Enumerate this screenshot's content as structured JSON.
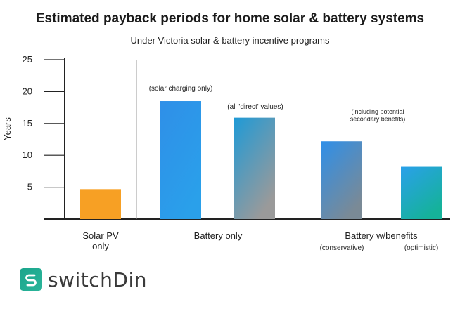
{
  "chart_data": {
    "type": "bar",
    "title": "Estimated payback periods for home solar & battery systems",
    "subtitle": "Under Victoria solar & battery incentive programs",
    "ylabel": "Years",
    "ylim": [
      0,
      25
    ],
    "yticks": [
      5,
      10,
      15,
      20,
      25
    ],
    "grid": false,
    "groups": [
      {
        "label": "Solar PV\nonly"
      },
      {
        "label": "Battery only"
      },
      {
        "label": "Battery w/benefits"
      }
    ],
    "bars": [
      {
        "group": 0,
        "value": 4.7,
        "annotation": "",
        "sublabel": "",
        "colors": [
          "#f7a024",
          "#f7a024"
        ]
      },
      {
        "group": 1,
        "value": 18.5,
        "annotation": "(solar charging only)",
        "sublabel": "",
        "colors": [
          "#2f8fe8",
          "#2aa0ea"
        ]
      },
      {
        "group": 1,
        "value": 15.9,
        "annotation": "(all 'direct' values)",
        "sublabel": "",
        "colors": [
          "#1f9ad6",
          "#9a9a9a"
        ]
      },
      {
        "group": 2,
        "value": 12.2,
        "annotation": "(including potential\nsecondary benefits)",
        "sublabel": "(conservative)",
        "colors": [
          "#2f8fe8",
          "#7a8a96"
        ]
      },
      {
        "group": 2,
        "value": 8.2,
        "annotation": "",
        "sublabel": "(optimistic)",
        "colors": [
          "#2aa0ea",
          "#15b29a"
        ]
      }
    ]
  },
  "logo": {
    "text": "switchDin",
    "icon": "switchdin-s-icon"
  }
}
